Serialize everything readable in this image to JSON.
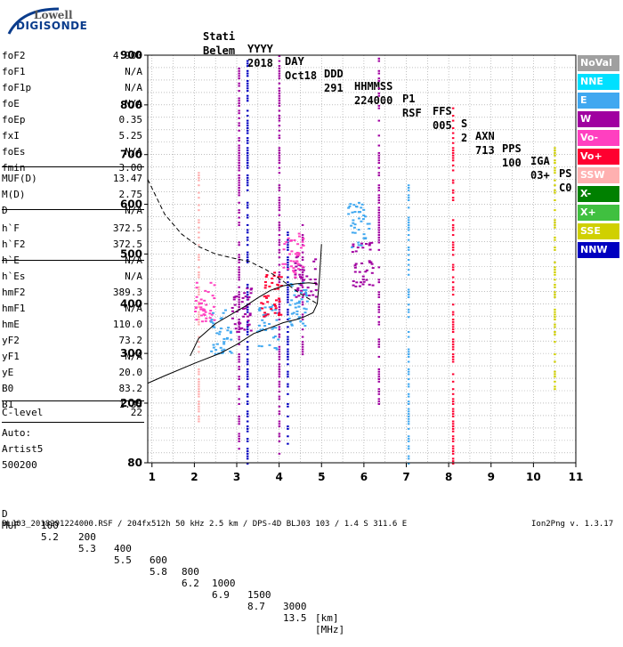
{
  "logo": {
    "line1": "Lowell",
    "line2": "DIGISONDE"
  },
  "header": {
    "labels": [
      "Stati",
      "YYYY",
      "DAY",
      "DDD",
      "HHMMSS",
      "P1",
      "FFS",
      "S",
      "AXN",
      "PPS",
      "IGA",
      "PS"
    ],
    "values": [
      "Belem",
      "2018",
      "Oct18",
      "291",
      "224000",
      "RSF",
      "005",
      "2",
      "713",
      "100",
      "03+",
      "C0"
    ]
  },
  "params": [
    {
      "label": "foF2",
      "value": "4.900"
    },
    {
      "label": "foF1",
      "value": "N/A"
    },
    {
      "label": "foF1p",
      "value": "N/A"
    },
    {
      "label": "foE",
      "value": "N/A"
    },
    {
      "label": "foEp",
      "value": "0.35"
    },
    {
      "label": "fxI",
      "value": "5.25"
    },
    {
      "label": "foEs",
      "value": "N/A"
    },
    {
      "label": "fmin",
      "value": "3.00"
    },
    {
      "label": "MUF(D)",
      "value": "13.47"
    },
    {
      "label": "M(D)",
      "value": "2.75"
    },
    {
      "label": "D",
      "value": "N/A"
    },
    {
      "label": "h`F",
      "value": "372.5"
    },
    {
      "label": "h`F2",
      "value": "372.5"
    },
    {
      "label": "h`E",
      "value": "N/A"
    },
    {
      "label": "h`Es",
      "value": "N/A"
    },
    {
      "label": "hmF2",
      "value": "389.3"
    },
    {
      "label": "hmF1",
      "value": "N/A"
    },
    {
      "label": "hmE",
      "value": "110.0"
    },
    {
      "label": "yF2",
      "value": "73.2"
    },
    {
      "label": "yF1",
      "value": "N/A"
    },
    {
      "label": "yE",
      "value": "20.0"
    },
    {
      "label": "B0",
      "value": "83.2"
    },
    {
      "label": "B1",
      "value": "1.35"
    },
    {
      "label": "C-level",
      "value": "22"
    }
  ],
  "autoscale": {
    "line1": "Auto:",
    "line2": "Artist5",
    "line3": "500200"
  },
  "legend": [
    {
      "label": "NoVal",
      "color": "#a0a0a0"
    },
    {
      "label": "NNE",
      "color": "#00e0ff"
    },
    {
      "label": "E",
      "color": "#40a8f0"
    },
    {
      "label": "W",
      "color": "#a000a0"
    },
    {
      "label": "Vo-",
      "color": "#ff40c0"
    },
    {
      "label": "Vo+",
      "color": "#ff0030"
    },
    {
      "label": "SSW",
      "color": "#ffb0b0"
    },
    {
      "label": "X-",
      "color": "#008000"
    },
    {
      "label": "X+",
      "color": "#40c040"
    },
    {
      "label": "SSE",
      "color": "#d0d000"
    },
    {
      "label": "NNW",
      "color": "#0000c0"
    }
  ],
  "muf_table": {
    "d_label": "D",
    "d_values": [
      "100",
      "200",
      "400",
      "600",
      "800",
      "1000",
      "1500",
      "3000"
    ],
    "d_unit": "[km]",
    "muf_label": "MUF",
    "muf_values": [
      "5.2",
      "5.3",
      "5.5",
      "5.8",
      "6.2",
      "6.9",
      "8.7",
      "13.5"
    ],
    "muf_unit": "[MHz]"
  },
  "footer": {
    "info": "BLJ03_2018291224000.RSF / 204fx512h 50 kHz 2.5 km / DPS-4D BLJ03 103 / 1.4 S 311.6 E",
    "version": "Ion2Png v. 1.3.17"
  },
  "chart_data": {
    "type": "scatter",
    "xlim": [
      0.9,
      11
    ],
    "ylim": [
      80,
      900
    ],
    "xticks": [
      1,
      2,
      3,
      4,
      5,
      6,
      7,
      8,
      9,
      10,
      11
    ],
    "yticks": [
      80,
      200,
      300,
      400,
      500,
      600,
      700,
      800,
      900
    ],
    "grid": true,
    "legend_position": "right",
    "curves": [
      {
        "name": "virtual-height",
        "style": "solid",
        "x": [
          0.9,
          1.3,
          2.0,
          2.6,
          3.0,
          3.4,
          3.8,
          4.1,
          4.4,
          4.6,
          4.8,
          4.9,
          4.95,
          5.0
        ],
        "y": [
          240,
          255,
          280,
          300,
          318,
          340,
          352,
          362,
          368,
          374,
          382,
          400,
          450,
          520
        ]
      },
      {
        "name": "true-height",
        "style": "solid",
        "x": [
          1.9,
          2.1,
          2.5,
          2.9,
          3.2,
          3.5,
          3.8,
          4.1,
          4.4,
          4.7,
          4.9
        ],
        "y": [
          295,
          330,
          360,
          380,
          395,
          412,
          427,
          436,
          440,
          442,
          440
        ]
      },
      {
        "name": "model-profile",
        "style": "dashed",
        "x": [
          0.9,
          1.3,
          1.7,
          2.1,
          2.5,
          2.9,
          3.3,
          3.7,
          4.1,
          4.5,
          4.9
        ],
        "y": [
          650,
          580,
          540,
          515,
          500,
          492,
          485,
          468,
          445,
          420,
          400
        ]
      }
    ],
    "traces": [
      {
        "x": 3.25,
        "y0": 80,
        "y1": 900,
        "color": "#0000c0"
      },
      {
        "x": 4.2,
        "y0": 120,
        "y1": 560,
        "color": "#0000c0"
      },
      {
        "x": 3.05,
        "y0": 110,
        "y1": 880,
        "color": "#a000a0"
      },
      {
        "x": 4.55,
        "y0": 300,
        "y1": 560,
        "color": "#a000a0"
      },
      {
        "x": 6.35,
        "y0": 200,
        "y1": 900,
        "color": "#a000a0"
      },
      {
        "x": 7.05,
        "y0": 80,
        "y1": 650,
        "color": "#40a8f0"
      },
      {
        "x": 8.1,
        "y0": 80,
        "y1": 800,
        "color": "#ff0030"
      },
      {
        "x": 10.5,
        "y0": 220,
        "y1": 720,
        "color": "#d0d000"
      },
      {
        "x": 2.1,
        "y0": 150,
        "y1": 700,
        "color": "#ffb0b0"
      },
      {
        "x": 4.0,
        "y0": 100,
        "y1": 900,
        "color": "#a000a0"
      }
    ],
    "clusters": [
      {
        "x": 2.2,
        "y": 400,
        "color": "#ff40c0"
      },
      {
        "x": 2.6,
        "y": 345,
        "color": "#40a8f0"
      },
      {
        "x": 3.1,
        "y": 390,
        "color": "#a000a0"
      },
      {
        "x": 3.7,
        "y": 355,
        "color": "#40a8f0"
      },
      {
        "x": 3.8,
        "y": 420,
        "color": "#ff0030"
      },
      {
        "x": 4.45,
        "y": 400,
        "color": "#40a8f0"
      },
      {
        "x": 4.6,
        "y": 460,
        "color": "#a000a0"
      },
      {
        "x": 4.3,
        "y": 500,
        "color": "#ff40c0"
      },
      {
        "x": 5.95,
        "y": 480,
        "color": "#a000a0"
      },
      {
        "x": 5.85,
        "y": 560,
        "color": "#40a8f0"
      }
    ]
  }
}
